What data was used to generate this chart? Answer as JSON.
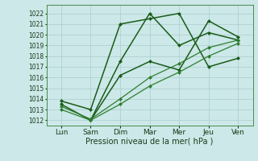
{
  "x_labels": [
    "Lun",
    "Sam",
    "Dim",
    "Mar",
    "Mer",
    "Jeu",
    "Ven"
  ],
  "x_positions": [
    0,
    1,
    2,
    3,
    4,
    5,
    6
  ],
  "yticks": [
    1012,
    1013,
    1014,
    1015,
    1016,
    1017,
    1018,
    1019,
    1020,
    1021,
    1022
  ],
  "ylim": [
    1011.5,
    1022.8
  ],
  "xlim": [
    -0.5,
    6.5
  ],
  "xlabel": "Pression niveau de la mer( hPa )",
  "xlabel_fontsize": 7,
  "bg_color": "#cce8e8",
  "grid_color": "#aacccc",
  "line_color_dark": "#1a5c1a",
  "line_color_light": "#2e7d2e",
  "tick_fontsize": 5.5,
  "x_tick_fontsize": 6.5,
  "lines": [
    {
      "x": [
        0,
        1,
        2,
        3,
        4,
        5,
        6
      ],
      "y": [
        1013.8,
        1013.0,
        1021.0,
        1021.5,
        1022.0,
        1017.0,
        1017.8
      ],
      "lw": 1.1
    },
    {
      "x": [
        0,
        1,
        2,
        3,
        4,
        5,
        6
      ],
      "y": [
        1013.5,
        1012.0,
        1017.5,
        1022.0,
        1019.0,
        1020.2,
        1019.5
      ],
      "lw": 1.1
    },
    {
      "x": [
        1,
        2,
        3,
        4,
        5,
        6
      ],
      "y": [
        1012.0,
        1016.2,
        1017.5,
        1016.7,
        1021.3,
        1019.8
      ],
      "lw": 1.1
    },
    {
      "x": [
        0,
        1,
        2,
        3,
        4,
        5,
        6
      ],
      "y": [
        1013.0,
        1012.0,
        1013.5,
        1015.2,
        1016.5,
        1018.0,
        1019.2
      ],
      "lw": 0.9
    },
    {
      "x": [
        0,
        1,
        2,
        3,
        4,
        5,
        6
      ],
      "y": [
        1013.3,
        1012.1,
        1014.0,
        1016.0,
        1017.3,
        1018.8,
        1019.5
      ],
      "lw": 0.9
    }
  ]
}
